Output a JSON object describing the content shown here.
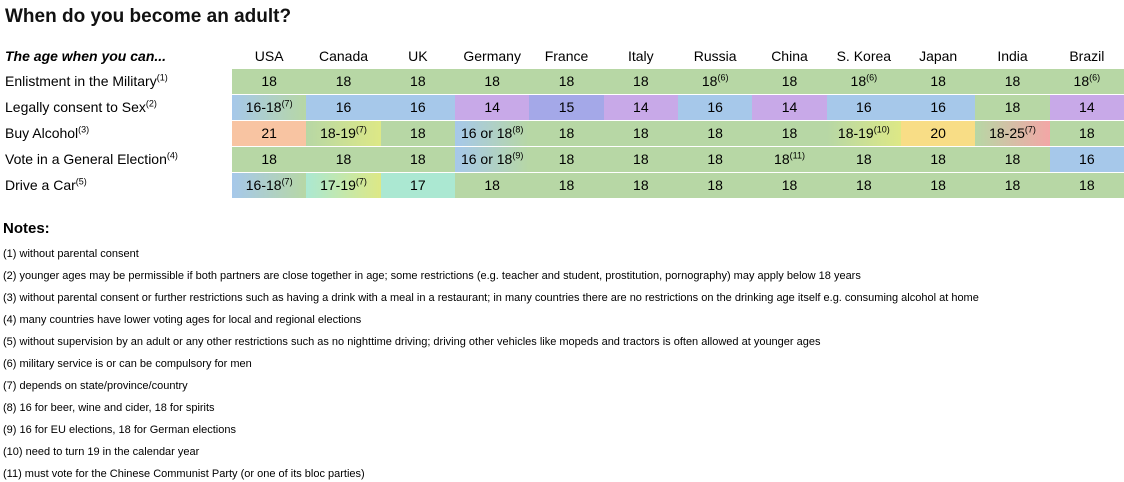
{
  "title": "When do you become an adult?",
  "chart_data": {
    "type": "table",
    "title": "When do you become an adult?",
    "corner_label": "The age when you can...",
    "columns": [
      "USA",
      "Canada",
      "UK",
      "Germany",
      "France",
      "Italy",
      "Russia",
      "China",
      "S. Korea",
      "Japan",
      "India",
      "Brazil"
    ],
    "age_colors": {
      "14": "#c8a9e8",
      "15": "#a4a8e8",
      "16": "#a6c8ea",
      "17": "#abe8d2",
      "18": "#b7d7a5",
      "19": "#dde886",
      "20": "#f8dd86",
      "21": "#f8c4a2",
      "25": "#f3a6a6"
    },
    "rows": [
      {
        "label": "Enlistment in the Military",
        "note_ref": "(1)",
        "cells": [
          {
            "text": "18",
            "sup": "",
            "age_from": "18",
            "age_to": "18"
          },
          {
            "text": "18",
            "sup": "",
            "age_from": "18",
            "age_to": "18"
          },
          {
            "text": "18",
            "sup": "",
            "age_from": "18",
            "age_to": "18"
          },
          {
            "text": "18",
            "sup": "",
            "age_from": "18",
            "age_to": "18"
          },
          {
            "text": "18",
            "sup": "",
            "age_from": "18",
            "age_to": "18"
          },
          {
            "text": "18",
            "sup": "",
            "age_from": "18",
            "age_to": "18"
          },
          {
            "text": "18",
            "sup": "(6)",
            "age_from": "18",
            "age_to": "18"
          },
          {
            "text": "18",
            "sup": "",
            "age_from": "18",
            "age_to": "18"
          },
          {
            "text": "18",
            "sup": "(6)",
            "age_from": "18",
            "age_to": "18"
          },
          {
            "text": "18",
            "sup": "",
            "age_from": "18",
            "age_to": "18"
          },
          {
            "text": "18",
            "sup": "",
            "age_from": "18",
            "age_to": "18"
          },
          {
            "text": "18",
            "sup": "(6)",
            "age_from": "18",
            "age_to": "18"
          }
        ]
      },
      {
        "label": "Legally consent to Sex",
        "note_ref": "(2)",
        "cells": [
          {
            "text": "16-18",
            "sup": "(7)",
            "age_from": "16",
            "age_to": "18"
          },
          {
            "text": "16",
            "sup": "",
            "age_from": "16",
            "age_to": "16"
          },
          {
            "text": "16",
            "sup": "",
            "age_from": "16",
            "age_to": "16"
          },
          {
            "text": "14",
            "sup": "",
            "age_from": "14",
            "age_to": "14"
          },
          {
            "text": "15",
            "sup": "",
            "age_from": "15",
            "age_to": "15"
          },
          {
            "text": "14",
            "sup": "",
            "age_from": "14",
            "age_to": "14"
          },
          {
            "text": "16",
            "sup": "",
            "age_from": "16",
            "age_to": "16"
          },
          {
            "text": "14",
            "sup": "",
            "age_from": "14",
            "age_to": "14"
          },
          {
            "text": "16",
            "sup": "",
            "age_from": "16",
            "age_to": "16"
          },
          {
            "text": "16",
            "sup": "",
            "age_from": "16",
            "age_to": "16"
          },
          {
            "text": "18",
            "sup": "",
            "age_from": "18",
            "age_to": "18"
          },
          {
            "text": "14",
            "sup": "",
            "age_from": "14",
            "age_to": "14"
          }
        ]
      },
      {
        "label": "Buy Alcohol",
        "note_ref": "(3)",
        "cells": [
          {
            "text": "21",
            "sup": "",
            "age_from": "21",
            "age_to": "21"
          },
          {
            "text": "18-19",
            "sup": "(7)",
            "age_from": "18",
            "age_to": "19"
          },
          {
            "text": "18",
            "sup": "",
            "age_from": "18",
            "age_to": "18"
          },
          {
            "text": "16 or 18",
            "sup": "(8)",
            "age_from": "16",
            "age_to": "18"
          },
          {
            "text": "18",
            "sup": "",
            "age_from": "18",
            "age_to": "18"
          },
          {
            "text": "18",
            "sup": "",
            "age_from": "18",
            "age_to": "18"
          },
          {
            "text": "18",
            "sup": "",
            "age_from": "18",
            "age_to": "18"
          },
          {
            "text": "18",
            "sup": "",
            "age_from": "18",
            "age_to": "18"
          },
          {
            "text": "18-19",
            "sup": "(10)",
            "age_from": "18",
            "age_to": "19"
          },
          {
            "text": "20",
            "sup": "",
            "age_from": "20",
            "age_to": "20"
          },
          {
            "text": "18-25",
            "sup": "(7)",
            "age_from": "18",
            "age_to": "25"
          },
          {
            "text": "18",
            "sup": "",
            "age_from": "18",
            "age_to": "18"
          }
        ]
      },
      {
        "label": "Vote in a General Election",
        "note_ref": "(4)",
        "cells": [
          {
            "text": "18",
            "sup": "",
            "age_from": "18",
            "age_to": "18"
          },
          {
            "text": "18",
            "sup": "",
            "age_from": "18",
            "age_to": "18"
          },
          {
            "text": "18",
            "sup": "",
            "age_from": "18",
            "age_to": "18"
          },
          {
            "text": "16 or 18",
            "sup": "(9)",
            "age_from": "16",
            "age_to": "18"
          },
          {
            "text": "18",
            "sup": "",
            "age_from": "18",
            "age_to": "18"
          },
          {
            "text": "18",
            "sup": "",
            "age_from": "18",
            "age_to": "18"
          },
          {
            "text": "18",
            "sup": "",
            "age_from": "18",
            "age_to": "18"
          },
          {
            "text": "18",
            "sup": "(11)",
            "age_from": "18",
            "age_to": "18"
          },
          {
            "text": "18",
            "sup": "",
            "age_from": "18",
            "age_to": "18"
          },
          {
            "text": "18",
            "sup": "",
            "age_from": "18",
            "age_to": "18"
          },
          {
            "text": "18",
            "sup": "",
            "age_from": "18",
            "age_to": "18"
          },
          {
            "text": "16",
            "sup": "",
            "age_from": "16",
            "age_to": "16"
          }
        ]
      },
      {
        "label": "Drive a Car",
        "note_ref": "(5)",
        "cells": [
          {
            "text": "16-18",
            "sup": "(7)",
            "age_from": "16",
            "age_to": "18"
          },
          {
            "text": "17-19",
            "sup": "(7)",
            "age_from": "17",
            "age_to": "19"
          },
          {
            "text": "17",
            "sup": "",
            "age_from": "17",
            "age_to": "17"
          },
          {
            "text": "18",
            "sup": "",
            "age_from": "18",
            "age_to": "18"
          },
          {
            "text": "18",
            "sup": "",
            "age_from": "18",
            "age_to": "18"
          },
          {
            "text": "18",
            "sup": "",
            "age_from": "18",
            "age_to": "18"
          },
          {
            "text": "18",
            "sup": "",
            "age_from": "18",
            "age_to": "18"
          },
          {
            "text": "18",
            "sup": "",
            "age_from": "18",
            "age_to": "18"
          },
          {
            "text": "18",
            "sup": "",
            "age_from": "18",
            "age_to": "18"
          },
          {
            "text": "18",
            "sup": "",
            "age_from": "18",
            "age_to": "18"
          },
          {
            "text": "18",
            "sup": "",
            "age_from": "18",
            "age_to": "18"
          },
          {
            "text": "18",
            "sup": "",
            "age_from": "18",
            "age_to": "18"
          }
        ]
      }
    ]
  },
  "notes": {
    "heading": "Notes:",
    "items": [
      "(1) without parental consent",
      "(2) younger ages may be permissible if both partners are close together in age; some restrictions (e.g. teacher and student, prostitution, pornography) may apply below 18 years",
      "(3) without parental consent or further restrictions such as having a drink with a meal in a restaurant; in many countries there are no restrictions on the drinking age itself e.g. consuming alcohol at home",
      "(4) many countries have lower voting ages for local and regional elections",
      "(5) without supervision by an adult or any other restrictions such as no nighttime driving; driving other vehicles like mopeds and tractors is often allowed at younger ages",
      "(6) military service is or can be compulsory for men",
      "(7) depends on state/province/country",
      "(8) 16 for beer, wine and cider, 18 for spirits",
      "(9) 16 for EU elections, 18 for German elections",
      "(10) need to turn 19 in the calendar year",
      "(11) must vote for the Chinese Communist Party (or one of its bloc parties)"
    ]
  }
}
